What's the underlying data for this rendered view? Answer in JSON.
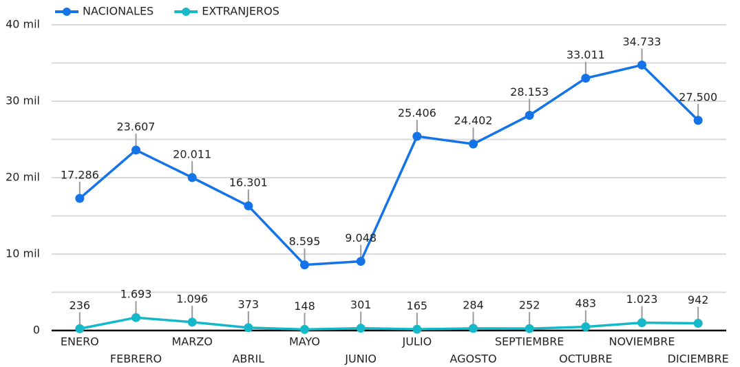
{
  "chart_data": {
    "type": "line",
    "categories": [
      "ENERO",
      "FEBRERO",
      "MARZO",
      "ABRIL",
      "MAYO",
      "JUNIO",
      "JULIO",
      "AGOSTO",
      "SEPTIEMBRE",
      "OCTUBRE",
      "NOVIEMBRE",
      "DICIEMBRE"
    ],
    "series": [
      {
        "name": "NACIONALES",
        "color": "#1473e6",
        "values": [
          17286,
          23607,
          20011,
          16301,
          8595,
          9048,
          25406,
          24402,
          28153,
          33011,
          34733,
          27500
        ],
        "value_labels": [
          "17.286",
          "23.607",
          "20.011",
          "16.301",
          "8.595",
          "9.048",
          "25.406",
          "24.402",
          "28.153",
          "33.011",
          "34.733",
          "27.500"
        ]
      },
      {
        "name": "EXTRANJEROS",
        "color": "#14b8c8",
        "values": [
          236,
          1693,
          1096,
          373,
          148,
          301,
          165,
          284,
          252,
          483,
          1023,
          942
        ],
        "value_labels": [
          "236",
          "1.693",
          "1.096",
          "373",
          "148",
          "301",
          "165",
          "284",
          "252",
          "483",
          "1.023",
          "942"
        ]
      }
    ],
    "ylim": [
      0,
      40000
    ],
    "yticks": [
      0,
      {
        "value": 10000,
        "label": "10 mil"
      },
      {
        "value": 20000,
        "label": "20 mil"
      },
      {
        "value": 30000,
        "label": "30 mil"
      },
      {
        "value": 40000,
        "label": "40 mil"
      }
    ],
    "minor_yticks": [
      5000,
      15000,
      25000,
      35000
    ],
    "grid": true,
    "legend": "top-left"
  }
}
